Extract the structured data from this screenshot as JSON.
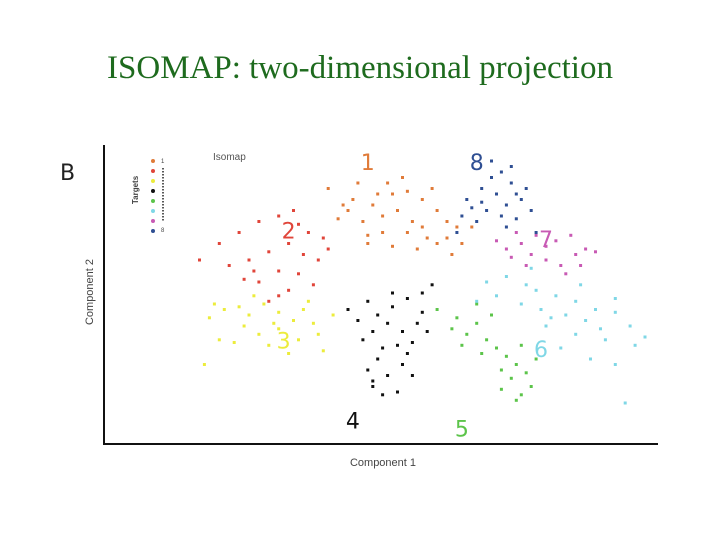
{
  "slide": {
    "title": "ISOMAP: two-dimensional projection"
  },
  "chart_data": {
    "type": "scatter",
    "panel_label": "B",
    "subtitle": "Isomap",
    "xlabel": "Component 1",
    "ylabel": "Component 2",
    "xlim": [
      0,
      100
    ],
    "ylim": [
      0,
      100
    ],
    "grid": false,
    "legend": {
      "title": "Targets",
      "placement": "top-left",
      "entries": [
        "1",
        "8"
      ]
    },
    "colors": {
      "1": "#e07b39",
      "2": "#e0453a",
      "3": "#ecec3c",
      "4": "#111111",
      "5": "#5cc44a",
      "6": "#7fd7e6",
      "7": "#c85ab4",
      "8": "#2f4f93"
    },
    "cluster_labels": [
      {
        "text": "1",
        "x": 44,
        "y": 95,
        "color": "#e07b39"
      },
      {
        "text": "8",
        "x": 66,
        "y": 95,
        "color": "#2f4f93"
      },
      {
        "text": "7",
        "x": 80,
        "y": 67,
        "color": "#c85ab4"
      },
      {
        "text": "2",
        "x": 28,
        "y": 70,
        "color": "#e0453a"
      },
      {
        "text": "3",
        "x": 27,
        "y": 30,
        "color": "#ecec3c"
      },
      {
        "text": "6",
        "x": 79,
        "y": 27,
        "color": "#7fd7e6"
      },
      {
        "text": "4",
        "x": 41,
        "y": 1,
        "color": "#111111"
      },
      {
        "text": "5",
        "x": 63,
        "y": -2,
        "color": "#5cc44a"
      }
    ],
    "series": [
      {
        "target": "1",
        "points": [
          [
            36,
            86
          ],
          [
            42,
            88
          ],
          [
            48,
            88
          ],
          [
            52,
            85
          ],
          [
            55,
            82
          ],
          [
            45,
            80
          ],
          [
            40,
            78
          ],
          [
            50,
            78
          ],
          [
            58,
            78
          ],
          [
            60,
            74
          ],
          [
            62,
            72
          ],
          [
            43,
            74
          ],
          [
            47,
            70
          ],
          [
            52,
            70
          ],
          [
            56,
            68
          ],
          [
            65,
            72
          ],
          [
            38,
            75
          ],
          [
            44,
            66
          ],
          [
            49,
            65
          ],
          [
            54,
            64
          ],
          [
            58,
            66
          ],
          [
            61,
            62
          ],
          [
            63,
            66
          ],
          [
            46,
            84
          ],
          [
            51,
            90
          ],
          [
            57,
            86
          ],
          [
            41,
            82
          ],
          [
            39,
            80
          ],
          [
            53,
            74
          ],
          [
            60,
            68
          ],
          [
            55,
            72
          ],
          [
            47,
            76
          ],
          [
            44,
            69
          ],
          [
            49,
            84
          ]
        ]
      },
      {
        "target": "2",
        "points": [
          [
            10,
            60
          ],
          [
            14,
            66
          ],
          [
            18,
            70
          ],
          [
            22,
            74
          ],
          [
            26,
            76
          ],
          [
            30,
            73
          ],
          [
            32,
            70
          ],
          [
            28,
            66
          ],
          [
            24,
            63
          ],
          [
            20,
            60
          ],
          [
            16,
            58
          ],
          [
            26,
            56
          ],
          [
            22,
            52
          ],
          [
            30,
            55
          ],
          [
            34,
            60
          ],
          [
            36,
            64
          ],
          [
            28,
            49
          ],
          [
            26,
            47
          ],
          [
            24,
            45
          ],
          [
            33,
            51
          ],
          [
            19,
            53
          ],
          [
            29,
            78
          ],
          [
            35,
            68
          ],
          [
            21,
            56
          ],
          [
            31,
            62
          ]
        ]
      },
      {
        "target": "3",
        "points": [
          [
            12,
            39
          ],
          [
            15,
            42
          ],
          [
            20,
            40
          ],
          [
            23,
            44
          ],
          [
            26,
            41
          ],
          [
            29,
            38
          ],
          [
            31,
            42
          ],
          [
            33,
            37
          ],
          [
            26,
            35
          ],
          [
            22,
            33
          ],
          [
            19,
            36
          ],
          [
            17,
            30
          ],
          [
            24,
            29
          ],
          [
            30,
            31
          ],
          [
            34,
            33
          ],
          [
            37,
            40
          ],
          [
            14,
            31
          ],
          [
            21,
            47
          ],
          [
            11,
            22
          ],
          [
            28,
            26
          ],
          [
            35,
            27
          ],
          [
            25,
            37
          ],
          [
            18,
            43
          ],
          [
            32,
            45
          ],
          [
            13,
            44
          ]
        ]
      },
      {
        "target": "4",
        "points": [
          [
            40,
            42
          ],
          [
            44,
            45
          ],
          [
            46,
            40
          ],
          [
            49,
            43
          ],
          [
            52,
            46
          ],
          [
            55,
            41
          ],
          [
            48,
            37
          ],
          [
            45,
            34
          ],
          [
            51,
            34
          ],
          [
            54,
            37
          ],
          [
            43,
            31
          ],
          [
            47,
            28
          ],
          [
            50,
            29
          ],
          [
            53,
            30
          ],
          [
            46,
            24
          ],
          [
            51,
            22
          ],
          [
            48,
            18
          ],
          [
            45,
            16
          ],
          [
            50,
            12
          ],
          [
            47,
            11
          ],
          [
            44,
            20
          ],
          [
            55,
            48
          ],
          [
            57,
            51
          ],
          [
            42,
            38
          ],
          [
            52,
            26
          ],
          [
            49,
            48
          ],
          [
            45,
            14
          ],
          [
            53,
            18
          ],
          [
            56,
            34
          ]
        ]
      },
      {
        "target": "5",
        "points": [
          [
            58,
            42
          ],
          [
            62,
            39
          ],
          [
            66,
            37
          ],
          [
            64,
            33
          ],
          [
            68,
            31
          ],
          [
            70,
            28
          ],
          [
            72,
            25
          ],
          [
            74,
            22
          ],
          [
            76,
            19
          ],
          [
            73,
            17
          ],
          [
            77,
            14
          ],
          [
            75,
            11
          ],
          [
            71,
            20
          ],
          [
            67,
            26
          ],
          [
            63,
            29
          ],
          [
            61,
            35
          ],
          [
            78,
            24
          ],
          [
            75,
            29
          ],
          [
            69,
            40
          ],
          [
            66,
            44
          ],
          [
            74,
            9
          ],
          [
            71,
            13
          ]
        ]
      },
      {
        "target": "6",
        "points": [
          [
            68,
            52
          ],
          [
            72,
            54
          ],
          [
            76,
            51
          ],
          [
            78,
            49
          ],
          [
            82,
            47
          ],
          [
            86,
            45
          ],
          [
            90,
            42
          ],
          [
            94,
            41
          ],
          [
            97,
            36
          ],
          [
            88,
            38
          ],
          [
            84,
            40
          ],
          [
            80,
            36
          ],
          [
            86,
            33
          ],
          [
            92,
            31
          ],
          [
            98,
            29
          ],
          [
            75,
            44
          ],
          [
            70,
            47
          ],
          [
            66,
            45
          ],
          [
            79,
            42
          ],
          [
            83,
            28
          ],
          [
            89,
            24
          ],
          [
            94,
            22
          ],
          [
            100,
            32
          ],
          [
            87,
            51
          ],
          [
            94,
            46
          ],
          [
            96,
            8
          ],
          [
            77,
            57
          ],
          [
            81,
            39
          ],
          [
            91,
            35
          ]
        ]
      },
      {
        "target": "7",
        "points": [
          [
            70,
            67
          ],
          [
            72,
            64
          ],
          [
            75,
            66
          ],
          [
            77,
            62
          ],
          [
            80,
            60
          ],
          [
            83,
            58
          ],
          [
            86,
            62
          ],
          [
            88,
            64
          ],
          [
            84,
            55
          ],
          [
            80,
            65
          ],
          [
            74,
            70
          ],
          [
            78,
            69
          ],
          [
            82,
            67
          ],
          [
            87,
            58
          ],
          [
            90,
            63
          ],
          [
            76,
            58
          ],
          [
            73,
            61
          ],
          [
            85,
            69
          ]
        ]
      },
      {
        "target": "8",
        "points": [
          [
            64,
            82
          ],
          [
            67,
            86
          ],
          [
            69,
            90
          ],
          [
            71,
            92
          ],
          [
            73,
            88
          ],
          [
            70,
            84
          ],
          [
            72,
            80
          ],
          [
            75,
            82
          ],
          [
            77,
            78
          ],
          [
            74,
            75
          ],
          [
            71,
            76
          ],
          [
            68,
            78
          ],
          [
            66,
            74
          ],
          [
            63,
            76
          ],
          [
            78,
            70
          ],
          [
            62,
            70
          ],
          [
            69,
            96
          ],
          [
            76,
            86
          ],
          [
            72,
            72
          ],
          [
            67,
            81
          ],
          [
            73,
            94
          ],
          [
            65,
            79
          ],
          [
            74,
            84
          ]
        ]
      }
    ]
  }
}
